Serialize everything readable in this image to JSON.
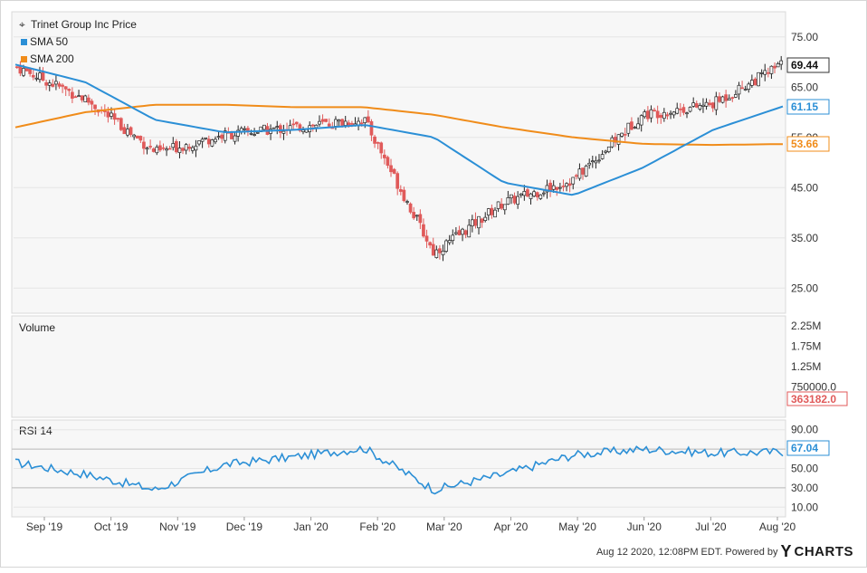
{
  "chart_data": {
    "type": "candlestick",
    "title": "Trinet Group Inc Price",
    "legend": [
      {
        "name": "Trinet Group Inc Price",
        "marker": "crosshair"
      },
      {
        "name": "SMA 50",
        "color": "#2b8fd6"
      },
      {
        "name": "SMA 200",
        "color": "#f08c1a"
      }
    ],
    "months": [
      "Sep '19",
      "Oct '19",
      "Nov '19",
      "Dec '19",
      "Jan '20",
      "Feb '20",
      "Mar '20",
      "Apr '20",
      "May '20",
      "Jun '20",
      "Jul '20",
      "Aug '20"
    ],
    "price": {
      "ylim": [
        20,
        80
      ],
      "ticks": [
        "75.00",
        "65.00",
        "55.00",
        "45.00",
        "35.00",
        "25.00"
      ],
      "tick_values": [
        75,
        65,
        55,
        45,
        35,
        25
      ],
      "current_label": "69.44",
      "sma50_label": "61.15",
      "sma200_label": "53.66",
      "close_by_month": [
        69.0,
        62.5,
        52.0,
        55.5,
        57.0,
        58.5,
        32.0,
        42.0,
        46.5,
        59.5,
        61.5,
        69.44
      ],
      "sma50_by_month": [
        69.5,
        66.0,
        58.5,
        56.0,
        56.5,
        57.5,
        55.0,
        46.0,
        43.5,
        49.0,
        56.5,
        61.15
      ],
      "sma200_by_month": [
        57.0,
        60.0,
        61.5,
        61.5,
        61.0,
        61.0,
        59.5,
        57.0,
        55.0,
        53.7,
        53.5,
        53.66
      ]
    },
    "volume": {
      "label": "Volume",
      "ylim": [
        0,
        2500000
      ],
      "ticks": [
        "2.25M",
        "1.75M",
        "1.25M",
        "750000.0"
      ],
      "tick_values": [
        2250000,
        1750000,
        1250000,
        750000
      ],
      "current_label": "363182.0"
    },
    "rsi": {
      "label": "RSI 14",
      "ylim": [
        0,
        100
      ],
      "ticks": [
        "90.00",
        "70.00",
        "50.00",
        "30.00",
        "10.00"
      ],
      "tick_values": [
        90,
        70,
        50,
        30,
        10
      ],
      "current_label": "67.04",
      "by_month": [
        56,
        44,
        28,
        54,
        62,
        71,
        28,
        44,
        64,
        70,
        66,
        67.04
      ]
    }
  },
  "footer": {
    "timestamp": "Aug 12 2020, 12:08PM EDT.",
    "powered_by": "Powered by",
    "brand": "CHARTS",
    "brand_initial": "Y"
  },
  "colors": {
    "up": "#ffffff",
    "down": "#e05a5a",
    "dark": "#222222",
    "sma50": "#2b8fd6",
    "sma200": "#f08c1a",
    "rsi": "#2b8fd6",
    "panel_bg": "#f7f7f7",
    "grid": "#e6e6e6"
  }
}
